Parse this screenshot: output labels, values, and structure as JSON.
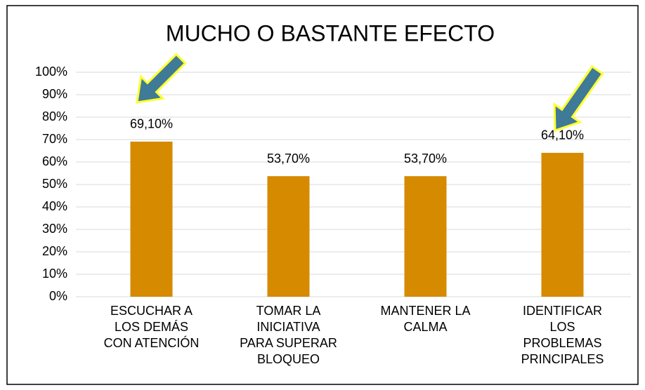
{
  "chart_data": {
    "type": "bar",
    "title": "MUCHO O BASTANTE EFECTO",
    "categories": [
      "ESCUCHAR A\nLOS DEMÁS\nCON ATENCIÓN",
      "TOMAR LA\nINICIATIVA\nPARA SUPERAR\nBLOQUEO",
      "MANTENER LA\nCALMA",
      "IDENTIFICAR\nLOS\nPROBLEMAS\nPRINCIPALES"
    ],
    "values": [
      69.1,
      53.7,
      53.7,
      64.1
    ],
    "value_labels": [
      "69,10%",
      "53,70%",
      "53,70%",
      "64,10%"
    ],
    "color": "#d68a00",
    "ylim": [
      0,
      100
    ],
    "yticks": [
      {
        "value": 0,
        "label": "0%"
      },
      {
        "value": 10,
        "label": "10%"
      },
      {
        "value": 20,
        "label": "20%"
      },
      {
        "value": 30,
        "label": "30%"
      },
      {
        "value": 40,
        "label": "40%"
      },
      {
        "value": 50,
        "label": "50%"
      },
      {
        "value": 60,
        "label": "60%"
      },
      {
        "value": 70,
        "label": "70%"
      },
      {
        "value": 80,
        "label": "80%"
      },
      {
        "value": 90,
        "label": "90%"
      },
      {
        "value": 100,
        "label": "100%"
      }
    ],
    "grid": true
  }
}
